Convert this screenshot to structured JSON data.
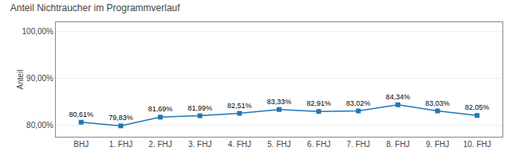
{
  "chart_data": {
    "type": "line",
    "title": "Anteil Nichtraucher im Programmverlauf",
    "ylabel": "Anteil",
    "categories": [
      "BHJ",
      "1. FHJ",
      "2. FHJ",
      "3. FHJ",
      "4. FHJ",
      "5. FHJ",
      "6. FHJ",
      "7. FHJ",
      "8. FHJ",
      "9. FHJ",
      "10. FHJ"
    ],
    "values": [
      80.61,
      79.83,
      81.69,
      81.99,
      82.51,
      83.33,
      82.91,
      83.02,
      84.34,
      83.03,
      82.05
    ],
    "value_labels": [
      "80,61%",
      "79,83%",
      "81,69%",
      "81,99%",
      "82,51%",
      "83,33%",
      "82,91%",
      "83,02%",
      "84,34%",
      "83,03%",
      "82,05%"
    ],
    "data_labels": true,
    "marker": "square",
    "ylim": [
      77.5,
      102.0
    ],
    "yticks": [
      {
        "value": 80.0,
        "label": "80,00%"
      },
      {
        "value": 90.0,
        "label": "90,00%"
      },
      {
        "value": 100.0,
        "label": "100,00%"
      }
    ],
    "grid": true
  }
}
